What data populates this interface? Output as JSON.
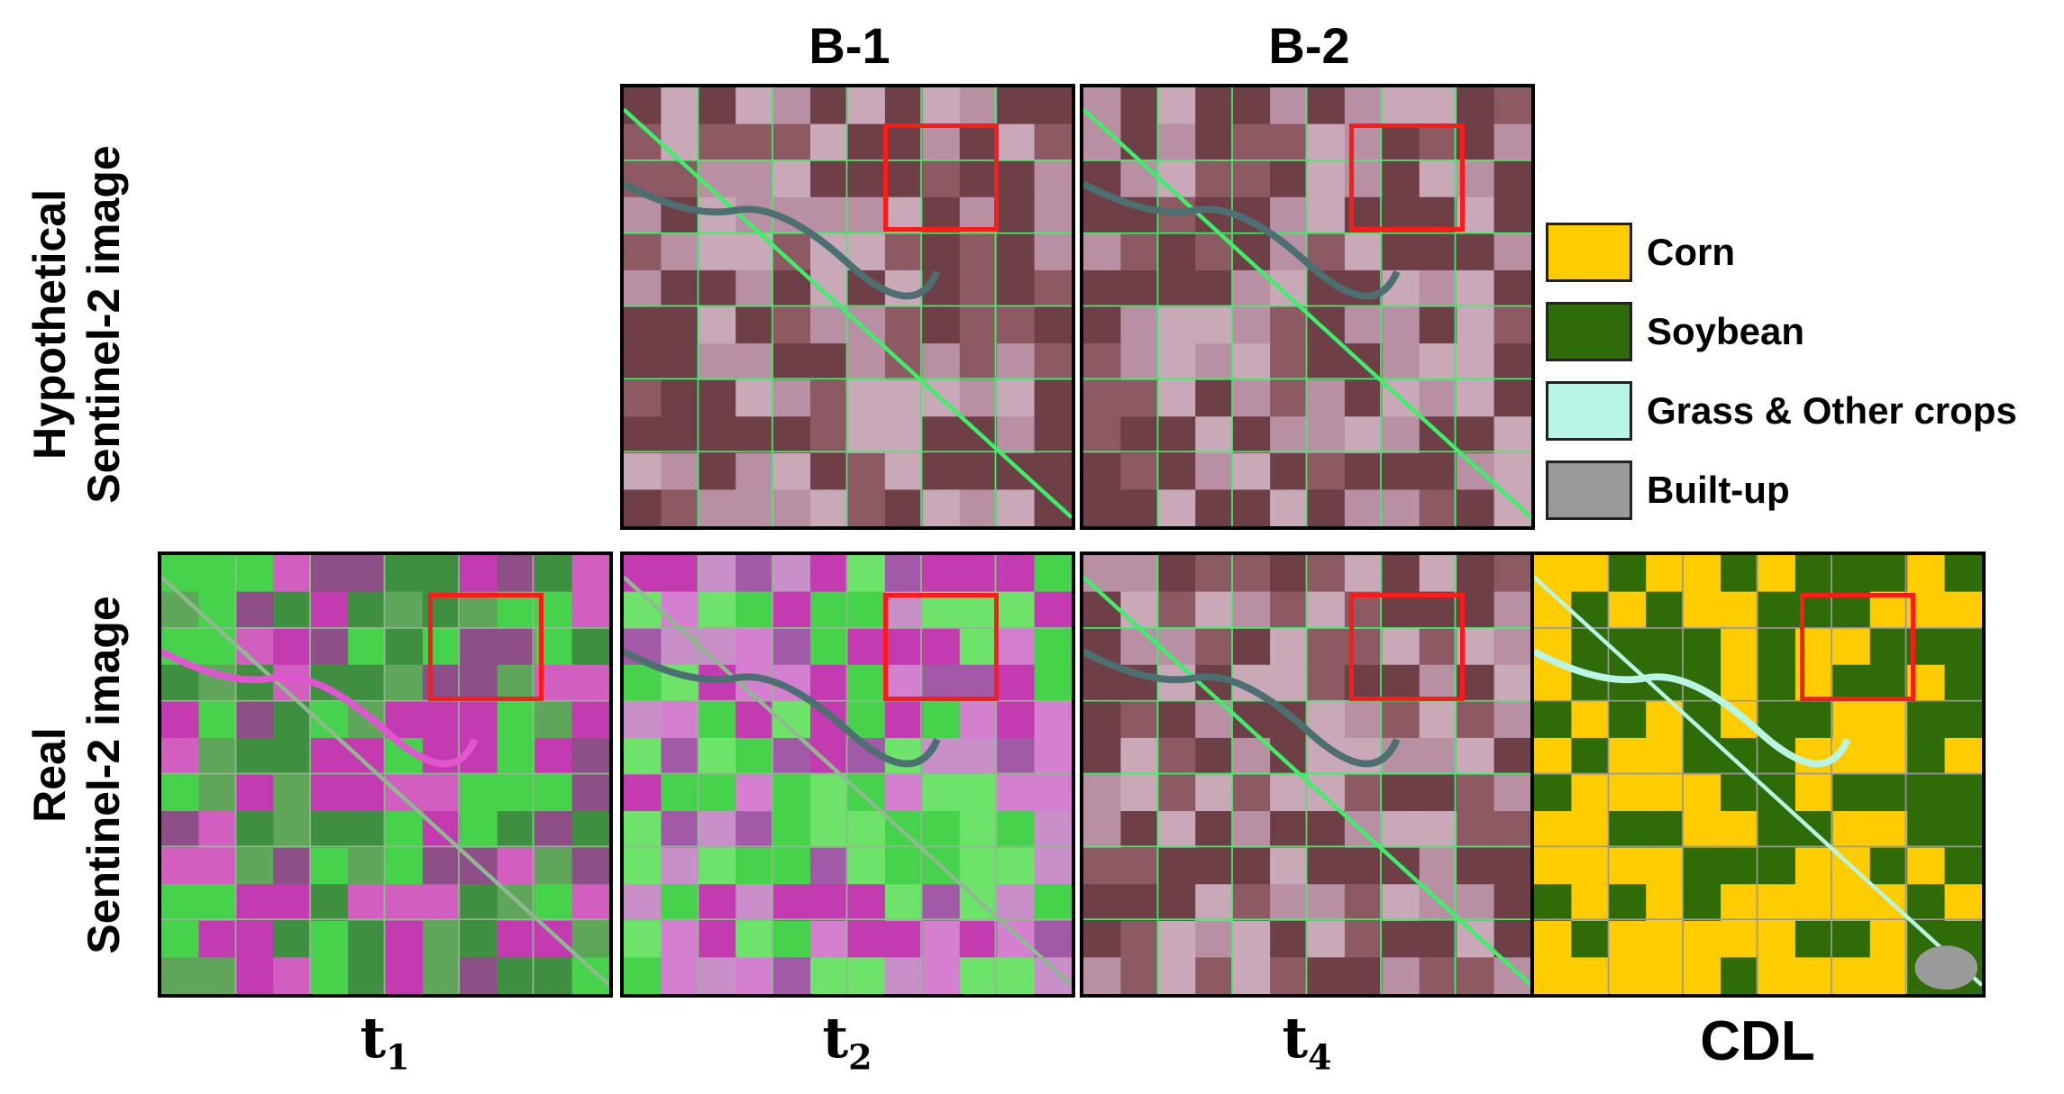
{
  "columns": {
    "b1": "B-1",
    "b2": "B-2"
  },
  "rows": {
    "hypothetical": [
      "Hypothetical",
      "Sentinel-2 image"
    ],
    "real": [
      "Real",
      "Sentinel-2 image"
    ]
  },
  "bottom_labels": {
    "t1_base": "t",
    "t1_sub": "1",
    "t2_base": "t",
    "t2_sub": "2",
    "t4_base": "t",
    "t4_sub": "4",
    "cdl": "CDL"
  },
  "legend": [
    {
      "label": "Corn",
      "color": "#ffcc00"
    },
    {
      "label": "Soybean",
      "color": "#2f6b06"
    },
    {
      "label": "Grass & Other crops",
      "color": "#b8f5e4"
    },
    {
      "label": "Built-up",
      "color": "#9a9a9a"
    }
  ],
  "colors": {
    "roi_box": "#ff1a1a",
    "false_color_dark": "#6e3f46",
    "false_color_light": "#c9a8b8",
    "false_color_pink": "#c43ab0",
    "false_color_green": "#46d24a",
    "road_green": "#3cf06a"
  }
}
